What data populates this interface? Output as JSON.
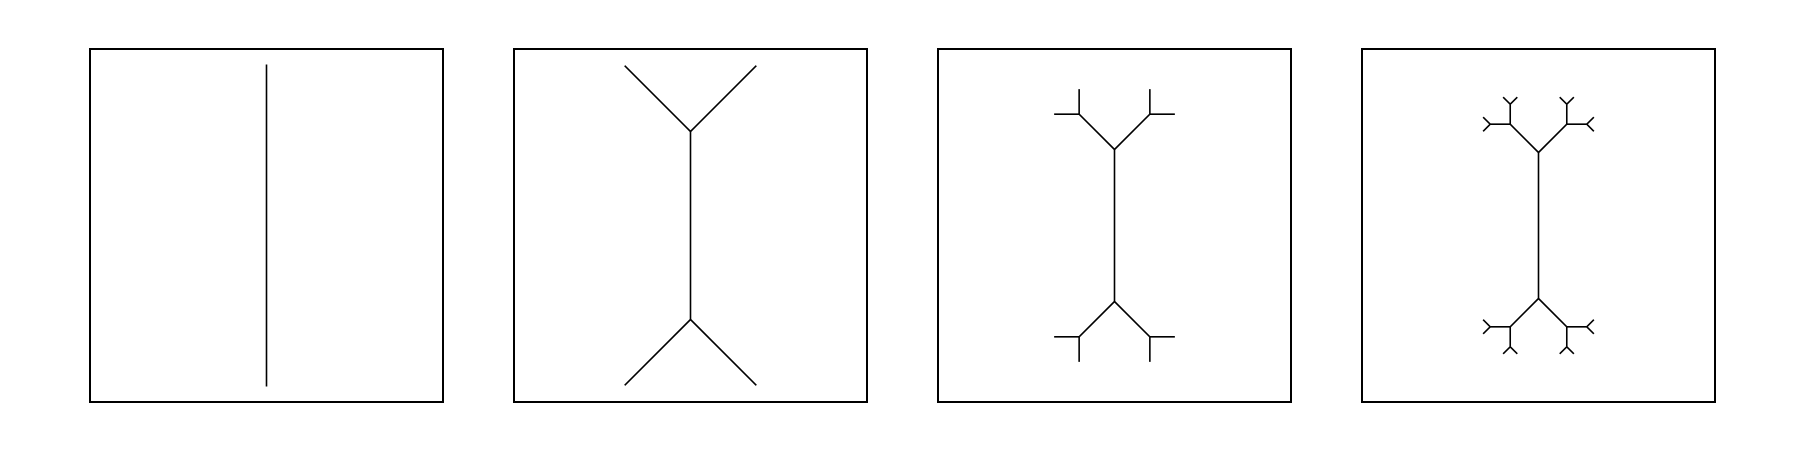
{
  "figure": {
    "description_shown": false,
    "panels": [
      {
        "iteration": 0
      },
      {
        "iteration": 1
      },
      {
        "iteration": 2
      },
      {
        "iteration": 3
      }
    ],
    "rule": {
      "branch_angle_deg": 45,
      "length_ratio": 0.5
    },
    "colors": {
      "stroke": "#000000",
      "background": "#ffffff"
    }
  }
}
